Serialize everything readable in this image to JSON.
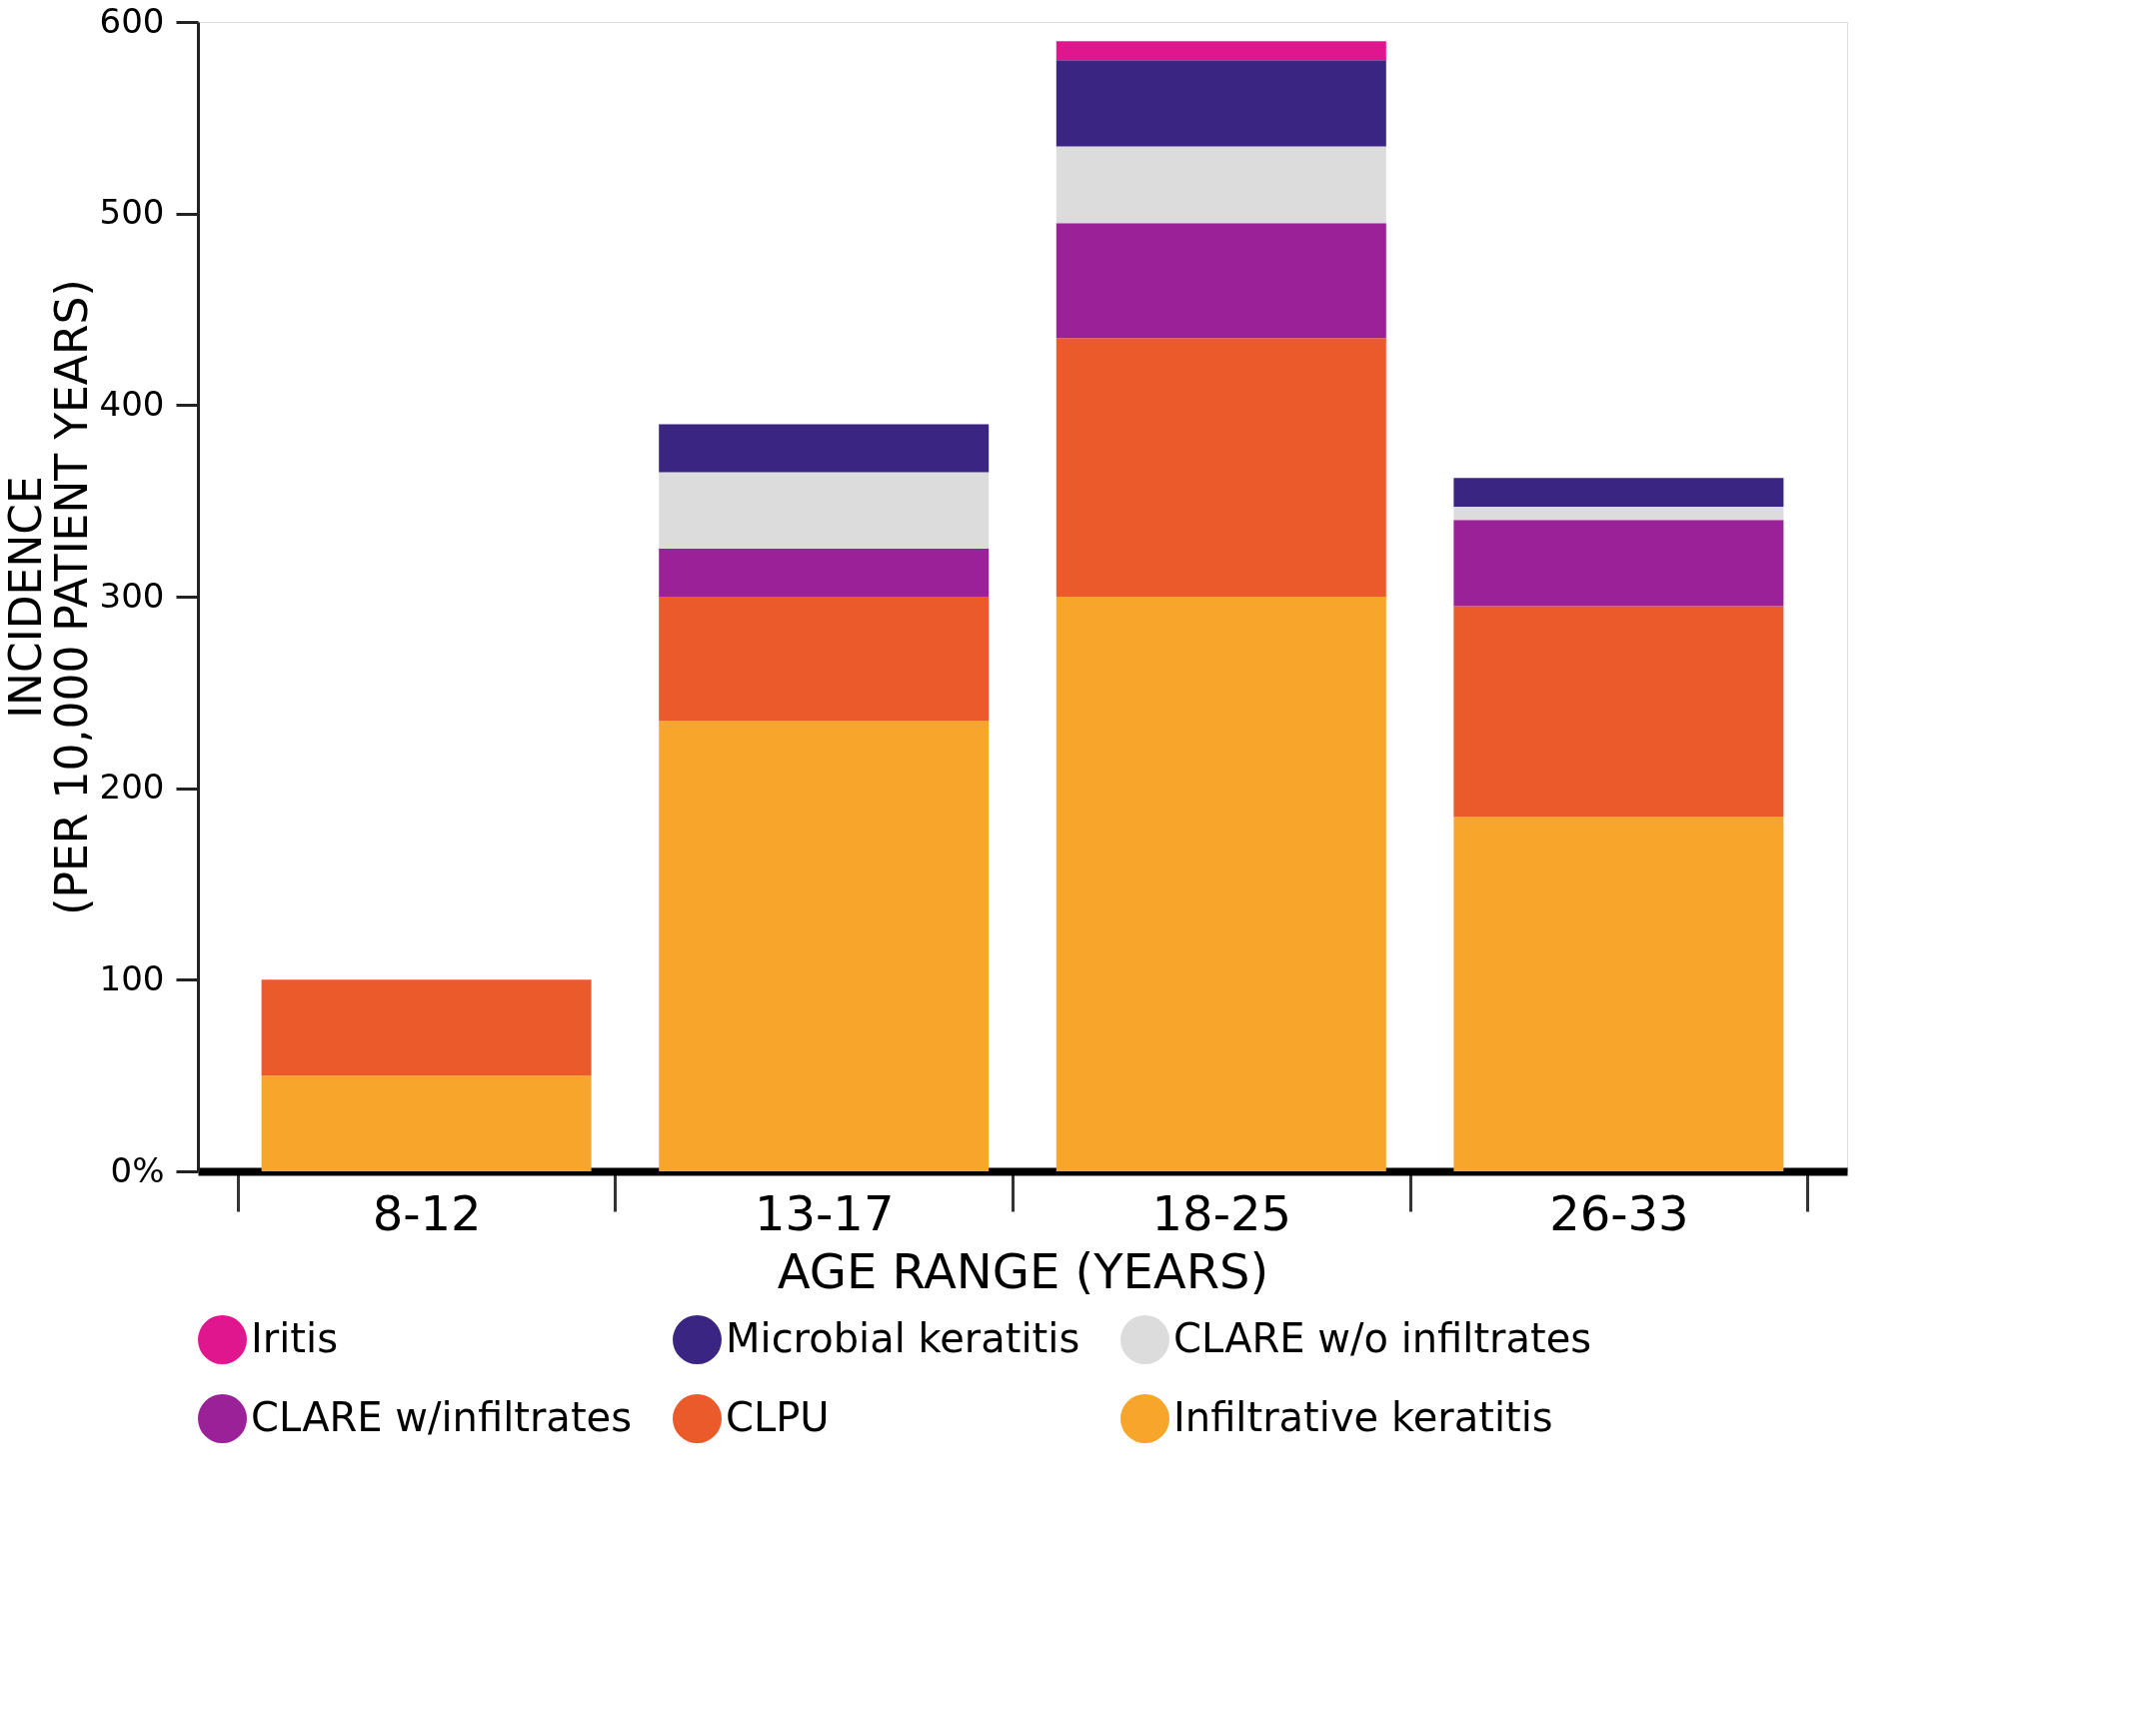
{
  "chart_data": {
    "type": "bar",
    "stacked": true,
    "xlabel": "AGE RANGE (YEARS)",
    "ylabel": "INCIDENCE\n(PER 10,000 PATIENT YEARS)",
    "categories": [
      "8-12",
      "13-17",
      "18-25",
      "26-33"
    ],
    "series": [
      {
        "name": "Infiltrative keratitis",
        "color": "#f7a52b",
        "values": [
          50,
          235,
          300,
          185
        ]
      },
      {
        "name": "CLPU",
        "color": "#ea5a2b",
        "values": [
          50,
          65,
          135,
          110
        ]
      },
      {
        "name": "CLARE w/infiltrates",
        "color": "#9a2197",
        "values": [
          null,
          25,
          60,
          45
        ]
      },
      {
        "name": "CLARE w/o infiltrates",
        "color": "#dcdcdc",
        "values": [
          null,
          40,
          40,
          7
        ]
      },
      {
        "name": "Microbial keratitis",
        "color": "#3b2582",
        "values": [
          null,
          25,
          45,
          15
        ]
      },
      {
        "name": "Iritis",
        "color": "#e0168e",
        "values": [
          null,
          null,
          10,
          null
        ]
      }
    ],
    "ylim": [
      0,
      600
    ],
    "yticks": [
      {
        "value": 0,
        "label": "0%"
      },
      100,
      200,
      300,
      400,
      500,
      600
    ],
    "grid": false,
    "legend": "bottom"
  }
}
